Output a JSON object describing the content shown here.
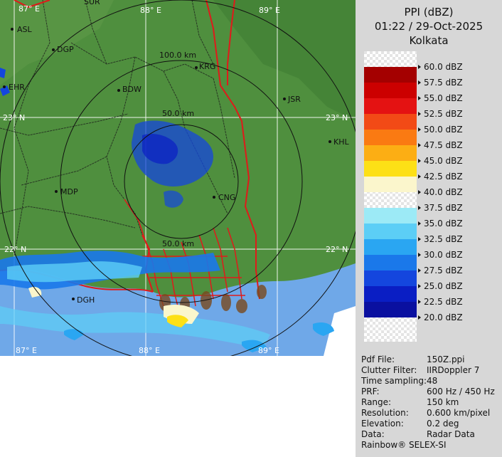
{
  "header": {
    "product": "PPI (dBZ)",
    "datetime": "01:22 / 29-Oct-2025",
    "station": "Kolkata"
  },
  "legend": {
    "levels": [
      "60.0 dBZ",
      "57.5 dBZ",
      "55.0 dBZ",
      "52.5 dBZ",
      "50.0 dBZ",
      "47.5 dBZ",
      "45.0 dBZ",
      "42.5 dBZ",
      "40.0 dBZ",
      "37.5 dBZ",
      "35.0 dBZ",
      "32.5 dBZ",
      "30.0 dBZ",
      "27.5 dBZ",
      "25.0 dBZ",
      "22.5 dBZ",
      "20.0 dBZ"
    ],
    "colors": [
      "#ffffff",
      "#a40000",
      "#cc0000",
      "#e41212",
      "#f24a16",
      "#fa7a12",
      "#fcae14",
      "#fde016",
      "#fbf6cc",
      "#ffffff",
      "#9ceaf6",
      "#5ccef6",
      "#2aa6f2",
      "#1a78ea",
      "#1446de",
      "#0a1ec4",
      "#0a10a0"
    ]
  },
  "map": {
    "lat_labels": [
      "23° N",
      "23° N",
      "22° N",
      "22° N"
    ],
    "lon_labels": [
      "87° E",
      "88° E",
      "89° E",
      "87° E",
      "88° E",
      "89° E"
    ],
    "range_labels": [
      "100.0 km",
      "50.0 km",
      "50.0 km"
    ],
    "cities": [
      {
        "name": "ASL"
      },
      {
        "name": "DGP"
      },
      {
        "name": "KRG"
      },
      {
        "name": "BDW"
      },
      {
        "name": "JSR"
      },
      {
        "name": "KHL"
      },
      {
        "name": "MDP"
      },
      {
        "name": "CNG"
      },
      {
        "name": "DGH"
      },
      {
        "name": "EHR"
      },
      {
        "name": "SUR"
      }
    ]
  },
  "info": [
    {
      "label": "Pdf File:",
      "value": "150Z.ppi"
    },
    {
      "label": "Clutter Filter:",
      "value": "IIRDoppler 7"
    },
    {
      "label": "Time sampling:",
      "value": "48"
    },
    {
      "label": "PRF:",
      "value": "600 Hz / 450 Hz"
    },
    {
      "label": "Range:",
      "value": "150 km"
    },
    {
      "label": "Resolution:",
      "value": "0.600 km/pixel"
    },
    {
      "label": "Elevation:",
      "value": "0.2 deg"
    },
    {
      "label": "Data:",
      "value": "Radar Data"
    }
  ],
  "credit": "Rainbow® SELEX-SI"
}
